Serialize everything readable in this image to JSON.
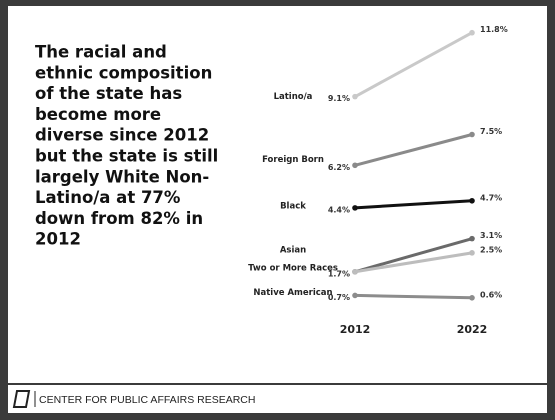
{
  "chart_data": {
    "type": "slope",
    "title": [
      "The racial and",
      "ethnic composition",
      "of the state has",
      "become more",
      "diverse since 2012",
      "but the state is still",
      "largely White Non-",
      "Latino/a at 77%",
      "down from 82% in",
      "2012"
    ],
    "categories": [
      "2012",
      "2022"
    ],
    "ylim": [
      0,
      12
    ],
    "series": [
      {
        "name": "Latino/a",
        "color": "#c9c9c9",
        "values": [
          9.1,
          11.8
        ],
        "value_labels": [
          "9.1%",
          "11.8%"
        ]
      },
      {
        "name": "Foreign Born",
        "color": "#8a8a8a",
        "values": [
          6.2,
          7.5
        ],
        "value_labels": [
          "6.2%",
          "7.5%"
        ]
      },
      {
        "name": "Black",
        "color": "#111111",
        "values": [
          4.4,
          4.7
        ],
        "value_labels": [
          "4.4%",
          "4.7%"
        ]
      },
      {
        "name": "Asian",
        "color": "#6a6a6a",
        "values": [
          1.7,
          3.1
        ],
        "value_labels": [
          null,
          "3.1%"
        ]
      },
      {
        "name": "Two or More Races",
        "color": "#bdbdbd",
        "values": [
          1.7,
          2.5
        ],
        "value_labels": [
          "1.7%",
          "2.5%"
        ]
      },
      {
        "name": "Native American",
        "color": "#8c8c8c",
        "values": [
          0.7,
          0.6
        ],
        "value_labels": [
          "0.7%",
          "0.6%"
        ]
      }
    ],
    "footer": "CENTER FOR PUBLIC AFFAIRS RESEARCH"
  }
}
